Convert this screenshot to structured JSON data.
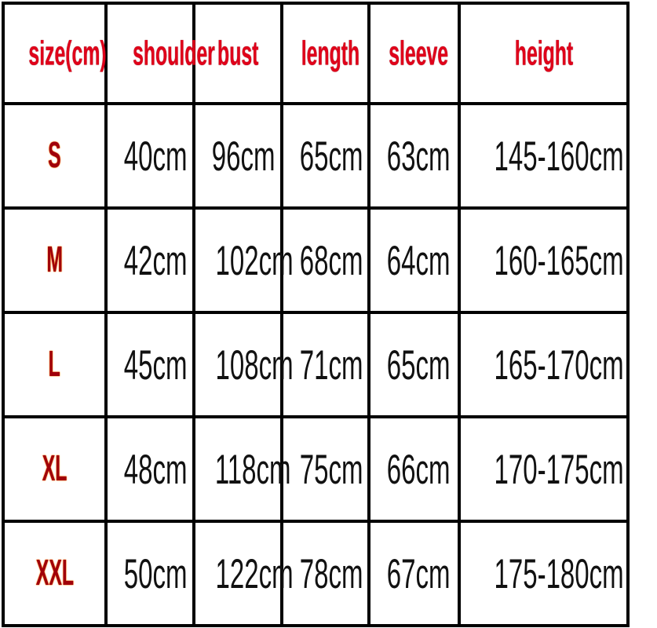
{
  "headers": [
    "size(cm)",
    "shoulder",
    "bust",
    "length",
    "sleeve",
    "height"
  ],
  "rows": [
    {
      "size": "S",
      "shoulder": "40cm",
      "bust": "96cm",
      "length": "65cm",
      "sleeve": "63cm",
      "height": "145-160cm"
    },
    {
      "size": "M",
      "shoulder": "42cm",
      "bust": "102cm",
      "length": "68cm",
      "sleeve": "64cm",
      "height": "160-165cm"
    },
    {
      "size": "L",
      "shoulder": "45cm",
      "bust": "108cm",
      "length": "71cm",
      "sleeve": "65cm",
      "height": "165-170cm"
    },
    {
      "size": "XL",
      "shoulder": "48cm",
      "bust": "118cm",
      "length": "75cm",
      "sleeve": "66cm",
      "height": "170-175cm"
    },
    {
      "size": "XXL",
      "shoulder": "50cm",
      "bust": "122cm",
      "length": "78cm",
      "sleeve": "67cm",
      "height": "175-180cm"
    }
  ],
  "colors": {
    "header_text": "#e0001a",
    "size_text": "#a0000a",
    "value_text": "#111111",
    "grid": "#000000"
  }
}
